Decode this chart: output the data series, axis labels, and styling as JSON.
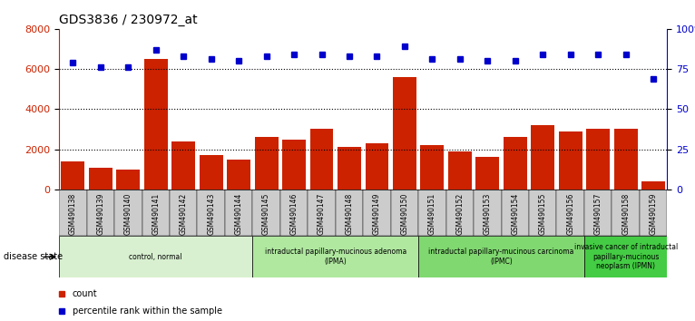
{
  "title": "GDS3836 / 230972_at",
  "samples": [
    "GSM490138",
    "GSM490139",
    "GSM490140",
    "GSM490141",
    "GSM490142",
    "GSM490143",
    "GSM490144",
    "GSM490145",
    "GSM490146",
    "GSM490147",
    "GSM490148",
    "GSM490149",
    "GSM490150",
    "GSM490151",
    "GSM490152",
    "GSM490153",
    "GSM490154",
    "GSM490155",
    "GSM490156",
    "GSM490157",
    "GSM490158",
    "GSM490159"
  ],
  "counts": [
    1400,
    1100,
    1000,
    6500,
    2400,
    1700,
    1500,
    2600,
    2500,
    3000,
    2100,
    2300,
    5600,
    2200,
    1900,
    1600,
    2600,
    3200,
    2900,
    3000,
    3000,
    400
  ],
  "percentiles": [
    79,
    76,
    76,
    87,
    83,
    81,
    80,
    83,
    84,
    84,
    83,
    83,
    89,
    81,
    81,
    80,
    80,
    84,
    84,
    84,
    84,
    69
  ],
  "bar_color": "#cc2200",
  "dot_color": "#0000cc",
  "ylim_left": [
    0,
    8000
  ],
  "ylim_right": [
    0,
    100
  ],
  "yticks_left": [
    0,
    2000,
    4000,
    6000,
    8000
  ],
  "yticks_right": [
    0,
    25,
    50,
    75,
    100
  ],
  "groups": [
    {
      "label": "control, normal",
      "start": 0,
      "end": 7,
      "color": "#d8f0d0"
    },
    {
      "label": "intraductal papillary-mucinous adenoma\n(IPMA)",
      "start": 7,
      "end": 13,
      "color": "#b0e8a0"
    },
    {
      "label": "intraductal papillary-mucinous carcinoma\n(IPMC)",
      "start": 13,
      "end": 19,
      "color": "#80d870"
    },
    {
      "label": "invasive cancer of intraductal\npapillary-mucinous\nneoplasm (IPMN)",
      "start": 19,
      "end": 22,
      "color": "#44cc44"
    }
  ],
  "background_color": "#ffffff",
  "sample_box_color": "#cccccc",
  "dotted_line_color": "#000000"
}
